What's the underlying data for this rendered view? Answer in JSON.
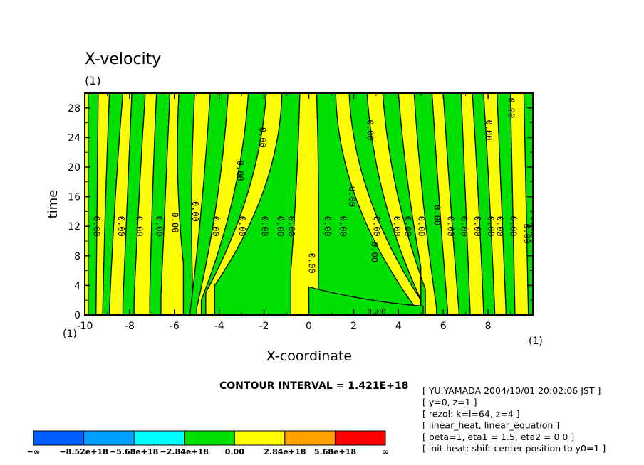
{
  "chart_data": {
    "type": "contour",
    "title": "X-velocity",
    "title_unit": "(1)",
    "xlabel": "X-coordinate",
    "ylabel": "time",
    "x_unit_left": "(1)",
    "x_unit_right": "(1)",
    "xlim": [
      -10,
      10
    ],
    "ylim": [
      0,
      30
    ],
    "x_ticks": [
      "-10",
      "-8",
      "-6",
      "-4",
      "-2",
      "0",
      "2",
      "4",
      "6",
      "8"
    ],
    "x_tick_values": [
      -10,
      -8,
      -6,
      -4,
      -2,
      0,
      2,
      4,
      6,
      8
    ],
    "y_ticks": [
      "0",
      "4",
      "8",
      "12",
      "16",
      "20",
      "24",
      "28"
    ],
    "y_tick_values": [
      0,
      4,
      8,
      12,
      16,
      20,
      24,
      28
    ],
    "contour_interval_label": "CONTOUR INTERVAL = 1.421E+18",
    "contour_label": "0.00",
    "colorbar": {
      "colors": [
        "#0060ff",
        "#00a0ff",
        "#00ffff",
        "#00e000",
        "#ffff00",
        "#ffa000",
        "#ff0000"
      ],
      "labels": [
        "−∞",
        "−8.52e+18",
        "−5.68e+18",
        "−2.84e+18",
        "0.00",
        "2.84e+18",
        "5.68e+18",
        "∞"
      ]
    },
    "info_lines": [
      "[ YU.YAMADA 2004/10/01 20:02:06 JST ]",
      "[ y=0, z=1 ]",
      "[ rezol: k=l=64, z=4 ]",
      "[ linear_heat, linear_equation ]",
      "[ beta=1, eta1 = 1.5, eta2 = 0.0 ]",
      "[ init-heat: shift center position to y0=1 ]"
    ]
  }
}
